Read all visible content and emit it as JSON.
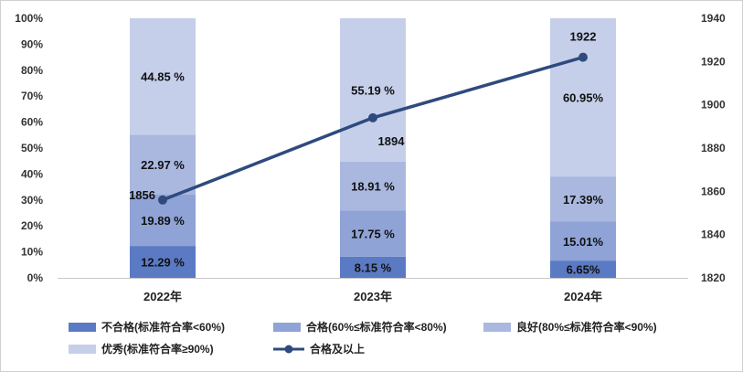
{
  "chart_data": {
    "type": "bar",
    "stacked": true,
    "categories": [
      "2022年",
      "2023年",
      "2024年"
    ],
    "series": [
      {
        "name": "不合格(标准符合率<60%)",
        "values": [
          12.29,
          8.15,
          6.65
        ],
        "labels": [
          "12.29 %",
          "8.15 %",
          "6.65%"
        ],
        "color": "#5b7ac4"
      },
      {
        "name": "合格(60%≤标准符合率<80%)",
        "values": [
          19.89,
          17.75,
          15.01
        ],
        "labels": [
          "19.89 %",
          "17.75 %",
          "15.01%"
        ],
        "color": "#8fa3d6"
      },
      {
        "name": "良好(80%≤标准符合率<90%)",
        "values": [
          22.97,
          18.91,
          17.39
        ],
        "labels": [
          "22.97 %",
          "18.91 %",
          "17.39%"
        ],
        "color": "#aab8e0"
      },
      {
        "name": "优秀(标准符合率≥90%)",
        "values": [
          44.85,
          55.19,
          60.95
        ],
        "labels": [
          "44.85 %",
          "55.19 %",
          "60.95%"
        ],
        "color": "#c6cfea"
      }
    ],
    "line": {
      "name": "合格及以上",
      "values": [
        1856,
        1894,
        1922
      ],
      "labels": [
        "1856",
        "1894",
        "1922"
      ],
      "color": "#2e4a7e"
    },
    "yaxis_left": {
      "ticks": [
        "0%",
        "10%",
        "20%",
        "30%",
        "40%",
        "50%",
        "60%",
        "70%",
        "80%",
        "90%",
        "100%"
      ],
      "ylim": [
        0,
        100
      ]
    },
    "yaxis_right": {
      "ticks": [
        "1820",
        "1840",
        "1860",
        "1880",
        "1900",
        "1920",
        "1940"
      ],
      "ylim": [
        1820,
        1940
      ]
    },
    "grid": false,
    "legend_position": "bottom"
  }
}
